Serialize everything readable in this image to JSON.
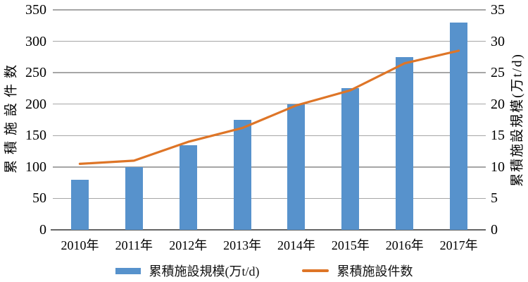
{
  "chart_data": {
    "type": "combo-bar-line",
    "title": "",
    "categories": [
      "2010年",
      "2011年",
      "2012年",
      "2013年",
      "2014年",
      "2015年",
      "2016年",
      "2017年"
    ],
    "series": [
      {
        "name": "累積施設規模(万t/d)",
        "type": "bar",
        "axis": "right",
        "color": "#5792CC",
        "values": [
          8,
          10,
          13.5,
          17.5,
          20,
          22.5,
          27.5,
          33
        ]
      },
      {
        "name": "累積施設件数",
        "type": "line",
        "axis": "left",
        "color": "#DE7527",
        "values": [
          105,
          110,
          140,
          162,
          198,
          222,
          265,
          285
        ]
      }
    ],
    "left_axis": {
      "label": "累積施設件数",
      "min": 0,
      "max": 350,
      "step": 50,
      "ticks": [
        "350",
        "300",
        "250",
        "200",
        "150",
        "100",
        "50",
        "0"
      ]
    },
    "right_axis": {
      "label": "累積施設規模(万t/d)",
      "min": 0,
      "max": 35,
      "step": 5,
      "ticks": [
        "35",
        "30",
        "25",
        "20",
        "15",
        "10",
        "5",
        "0"
      ]
    },
    "grid": true,
    "legend_position": "bottom",
    "colors": {
      "bar": "#5792CC",
      "line": "#DE7527",
      "gridline": "#A6A6A6",
      "baseline": "#666666",
      "text": "#000000",
      "background": "#FFFFFF"
    }
  }
}
